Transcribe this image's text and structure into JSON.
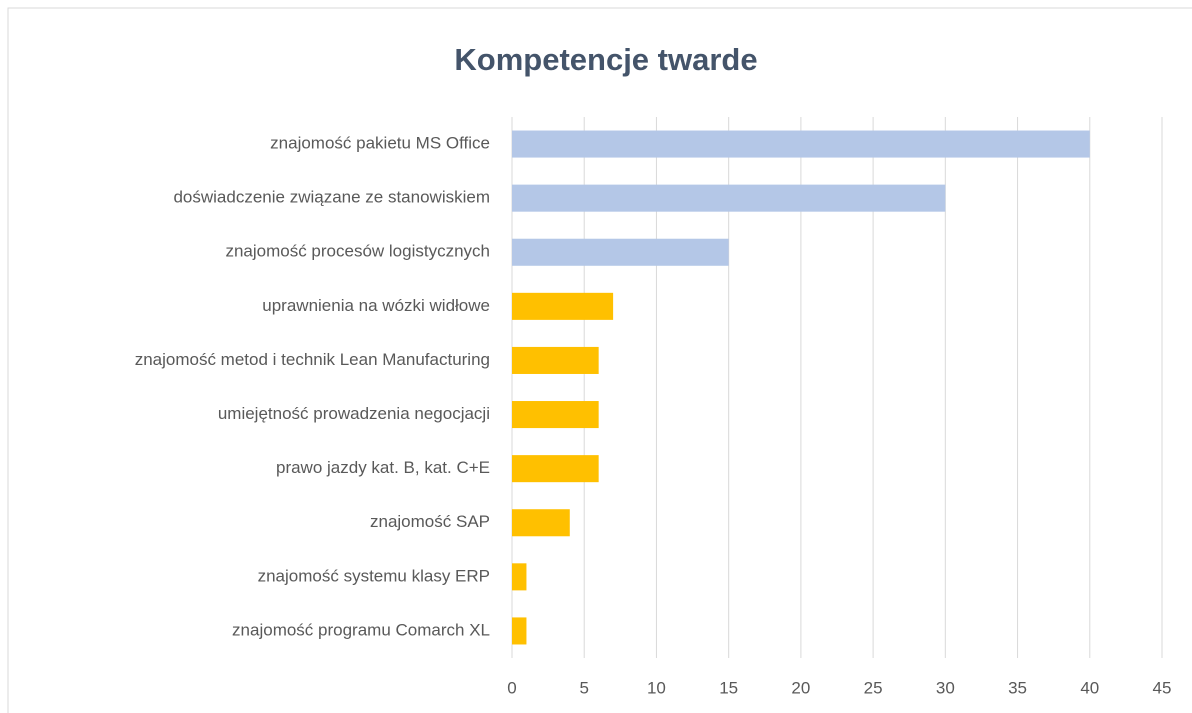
{
  "chart_data": {
    "type": "hbar",
    "title": "Kompetencje twarde",
    "categories": [
      "znajomość pakietu MS Office",
      "doświadczenie związane ze stanowiskiem",
      "znajomość procesów logistycznych",
      "uprawnienia na wózki widłowe",
      "znajomość metod i technik Lean Manufacturing",
      "umiejętność prowadzenia negocjacji",
      "prawo jazdy kat. B, kat. C+E",
      "znajomość SAP",
      "znajomość systemu klasy ERP",
      "znajomość programu Comarch XL"
    ],
    "values": [
      40,
      30,
      15,
      7,
      6,
      6,
      6,
      4,
      1,
      1
    ],
    "colors": [
      "#b4c7e7",
      "#b4c7e7",
      "#b4c7e7",
      "#ffc000",
      "#ffc000",
      "#ffc000",
      "#ffc000",
      "#ffc000",
      "#ffc000",
      "#ffc000"
    ],
    "xlim": [
      0,
      45
    ],
    "xticks": [
      0,
      5,
      10,
      15,
      20,
      25,
      30,
      35,
      40,
      45
    ],
    "grid": true
  }
}
